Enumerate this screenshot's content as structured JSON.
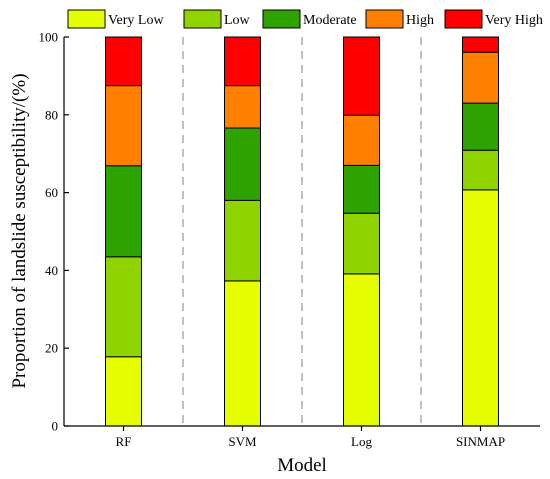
{
  "chart_data": {
    "type": "bar",
    "stacked": true,
    "categories": [
      "RF",
      "SVM",
      "Log",
      "SINMAP"
    ],
    "series": [
      {
        "name": "Very Low",
        "color": "#e6ff00",
        "values": [
          17.8,
          37.3,
          39.1,
          60.7
        ]
      },
      {
        "name": "Low",
        "color": "#8fd400",
        "values": [
          25.7,
          20.7,
          15.6,
          10.2
        ]
      },
      {
        "name": "Moderate",
        "color": "#2ea300",
        "values": [
          23.4,
          18.6,
          12.3,
          12.1
        ]
      },
      {
        "name": "High",
        "color": "#ff8000",
        "values": [
          20.6,
          10.9,
          12.9,
          13.1
        ]
      },
      {
        "name": "Very High",
        "color": "#ff0000",
        "values": [
          12.5,
          12.5,
          20.1,
          3.9
        ]
      }
    ],
    "xlabel": "Model",
    "ylabel": "Proportion of landslide susceptibility/(%)",
    "ylim": [
      0,
      100
    ],
    "yticks": [
      0,
      20,
      40,
      60,
      80,
      100
    ],
    "legend_position": "top",
    "grid": false,
    "separators": "dashed vertical lines between categories"
  }
}
